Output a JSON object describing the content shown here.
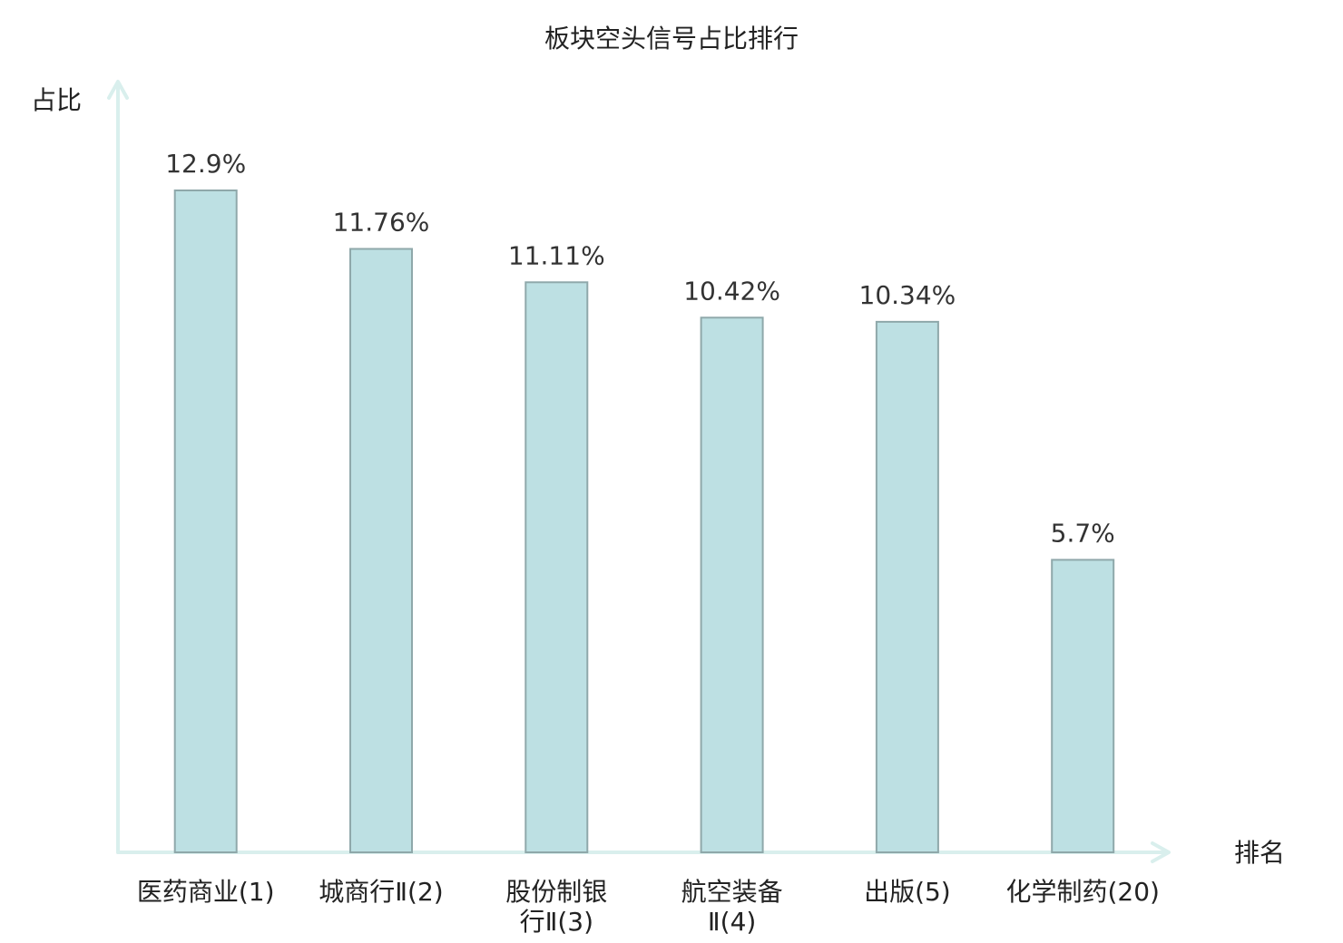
{
  "chart_data": {
    "type": "bar",
    "title": "板块空头信号占比排行",
    "xlabel": "排名",
    "ylabel": "占比",
    "categories": [
      [
        "医药商业(1)"
      ],
      [
        "城商行Ⅱ(2)"
      ],
      [
        "股份制银",
        "行Ⅱ(3)"
      ],
      [
        "航空装备",
        "Ⅱ(4)"
      ],
      [
        "出版(5)"
      ],
      [
        "化学制药(20)"
      ]
    ],
    "values": [
      12.9,
      11.76,
      11.11,
      10.42,
      10.34,
      5.7
    ],
    "data_labels": [
      "12.9%",
      "11.76%",
      "11.11%",
      "10.42%",
      "10.34%",
      "5.7%"
    ],
    "ylim": [
      0,
      12.9
    ],
    "grid": false,
    "legend": "none",
    "colors": {
      "bar_fill": "#bde0e3",
      "bar_stroke": "#8fa8aa",
      "axis": "#d9efed",
      "text": "#222222",
      "value_text": "#333333",
      "highlight_text": "#dd0000"
    },
    "highlight_category_index": 5
  }
}
